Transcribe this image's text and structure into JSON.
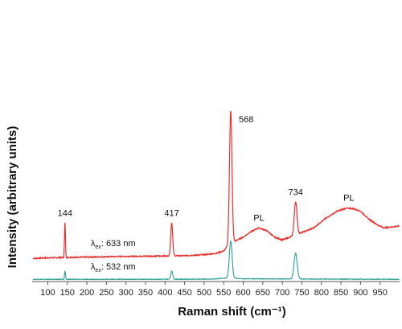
{
  "chart_data": {
    "type": "line",
    "xlabel": "Raman shift (cm⁻¹)",
    "ylabel": "Intensity (arbitrary units)",
    "xlim": [
      60,
      1000
    ],
    "ylim": [
      0,
      1
    ],
    "x_ticks": [
      100,
      150,
      200,
      250,
      300,
      350,
      400,
      450,
      500,
      550,
      600,
      650,
      700,
      750,
      800,
      850,
      900,
      950
    ],
    "y_ticks_shown": false,
    "series": [
      {
        "name": "λex: 633 nm",
        "label_main": "λ",
        "label_sub": "ex",
        "label_rest": ": 633 nm",
        "color": "#e8312f",
        "baseline": 0.13,
        "points": [
          [
            60,
            0.125
          ],
          [
            100,
            0.128
          ],
          [
            140,
            0.13
          ],
          [
            200,
            0.132
          ],
          [
            300,
            0.136
          ],
          [
            400,
            0.138
          ],
          [
            450,
            0.14
          ],
          [
            500,
            0.145
          ],
          [
            530,
            0.152
          ],
          [
            550,
            0.165
          ],
          [
            560,
            0.19
          ],
          [
            580,
            0.22
          ],
          [
            600,
            0.24
          ],
          [
            620,
            0.27
          ],
          [
            640,
            0.29
          ],
          [
            660,
            0.275
          ],
          [
            680,
            0.24
          ],
          [
            700,
            0.225
          ],
          [
            720,
            0.24
          ],
          [
            750,
            0.265
          ],
          [
            780,
            0.29
          ],
          [
            810,
            0.34
          ],
          [
            840,
            0.38
          ],
          [
            860,
            0.395
          ],
          [
            880,
            0.395
          ],
          [
            900,
            0.38
          ],
          [
            920,
            0.34
          ],
          [
            940,
            0.31
          ],
          [
            960,
            0.29
          ],
          [
            980,
            0.295
          ],
          [
            1000,
            0.3
          ]
        ],
        "peaks": [
          {
            "x": 144,
            "height": 0.19,
            "width": 1.2,
            "label": "144"
          },
          {
            "x": 417,
            "height": 0.18,
            "width": 2.5,
            "label": "417"
          },
          {
            "x": 568,
            "height": 0.72,
            "width": 3.2,
            "label": "568"
          },
          {
            "x": 734,
            "height": 0.18,
            "width": 3.5,
            "label": "734"
          }
        ]
      },
      {
        "name": "λex: 532 nm",
        "label_main": "λ",
        "label_sub": "ex",
        "label_rest": ": 532 nm",
        "color": "#2a9d94",
        "baseline": 0.012,
        "points": [
          [
            60,
            0.012
          ],
          [
            300,
            0.012
          ],
          [
            520,
            0.013
          ],
          [
            560,
            0.02
          ],
          [
            600,
            0.015
          ],
          [
            700,
            0.014
          ],
          [
            1000,
            0.012
          ]
        ],
        "peaks": [
          {
            "x": 144,
            "height": 0.045,
            "width": 1.2
          },
          {
            "x": 417,
            "height": 0.045,
            "width": 2.5
          },
          {
            "x": 568,
            "height": 0.2,
            "width": 3.5
          },
          {
            "x": 734,
            "height": 0.14,
            "width": 4
          }
        ]
      }
    ],
    "annotations": [
      {
        "text": "PL",
        "x": 640,
        "y": 0.31
      },
      {
        "text": "PL",
        "x": 870,
        "y": 0.42
      }
    ]
  }
}
